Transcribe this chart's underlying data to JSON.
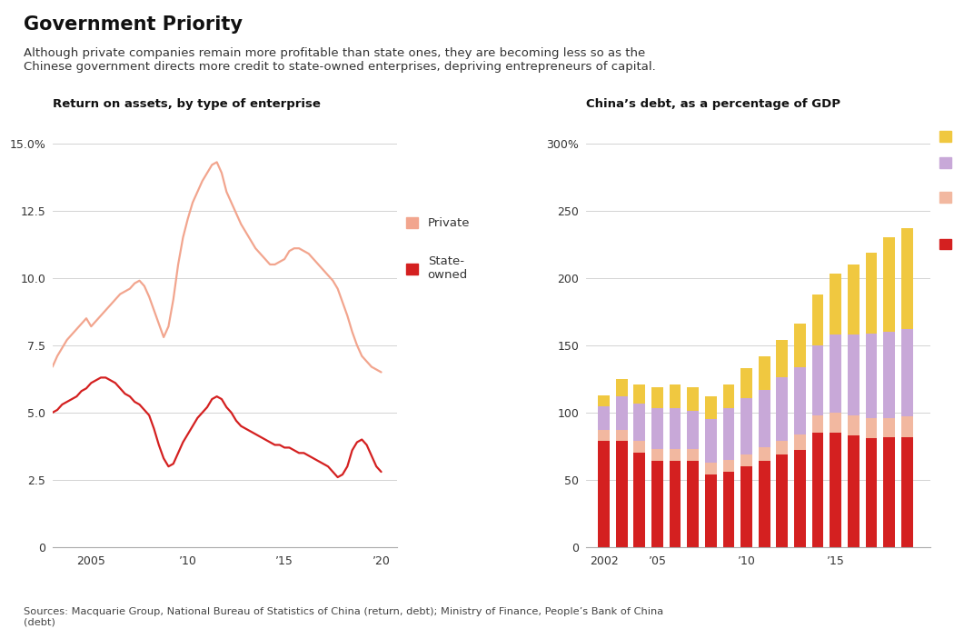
{
  "title": "Government Priority",
  "subtitle": "Although private companies remain more profitable than state ones, they are becoming less so as the\nChinese government directs more credit to state-owned enterprises, depriving entrepreneurs of capital.",
  "sources": "Sources: Macquarie Group, National Bureau of Statistics of China (return, debt); Ministry of Finance, People’s Bank of China\n(debt)",
  "left_title": "Return on assets, by type of enterprise",
  "left_years": [
    2003.0,
    2003.25,
    2003.5,
    2003.75,
    2004.0,
    2004.25,
    2004.5,
    2004.75,
    2005.0,
    2005.25,
    2005.5,
    2005.75,
    2006.0,
    2006.25,
    2006.5,
    2006.75,
    2007.0,
    2007.25,
    2007.5,
    2007.75,
    2008.0,
    2008.25,
    2008.5,
    2008.75,
    2009.0,
    2009.25,
    2009.5,
    2009.75,
    2010.0,
    2010.25,
    2010.5,
    2010.75,
    2011.0,
    2011.25,
    2011.5,
    2011.75,
    2012.0,
    2012.25,
    2012.5,
    2012.75,
    2013.0,
    2013.25,
    2013.5,
    2013.75,
    2014.0,
    2014.25,
    2014.5,
    2014.75,
    2015.0,
    2015.25,
    2015.5,
    2015.75,
    2016.0,
    2016.25,
    2016.5,
    2016.75,
    2017.0,
    2017.25,
    2017.5,
    2017.75,
    2018.0,
    2018.25,
    2018.5,
    2018.75,
    2019.0,
    2019.25,
    2019.5,
    2019.75,
    2020.0
  ],
  "private": [
    6.7,
    7.1,
    7.4,
    7.7,
    7.9,
    8.1,
    8.3,
    8.5,
    8.2,
    8.4,
    8.6,
    8.8,
    9.0,
    9.2,
    9.4,
    9.5,
    9.6,
    9.8,
    9.9,
    9.7,
    9.3,
    8.8,
    8.3,
    7.8,
    8.2,
    9.2,
    10.5,
    11.5,
    12.2,
    12.8,
    13.2,
    13.6,
    13.9,
    14.2,
    14.3,
    13.9,
    13.2,
    12.8,
    12.4,
    12.0,
    11.7,
    11.4,
    11.1,
    10.9,
    10.7,
    10.5,
    10.5,
    10.6,
    10.7,
    11.0,
    11.1,
    11.1,
    11.0,
    10.9,
    10.7,
    10.5,
    10.3,
    10.1,
    9.9,
    9.6,
    9.1,
    8.6,
    8.0,
    7.5,
    7.1,
    6.9,
    6.7,
    6.6,
    6.5
  ],
  "state_owned": [
    5.0,
    5.1,
    5.3,
    5.4,
    5.5,
    5.6,
    5.8,
    5.9,
    6.1,
    6.2,
    6.3,
    6.3,
    6.2,
    6.1,
    5.9,
    5.7,
    5.6,
    5.4,
    5.3,
    5.1,
    4.9,
    4.4,
    3.8,
    3.3,
    3.0,
    3.1,
    3.5,
    3.9,
    4.2,
    4.5,
    4.8,
    5.0,
    5.2,
    5.5,
    5.6,
    5.5,
    5.2,
    5.0,
    4.7,
    4.5,
    4.4,
    4.3,
    4.2,
    4.1,
    4.0,
    3.9,
    3.8,
    3.8,
    3.7,
    3.7,
    3.6,
    3.5,
    3.5,
    3.4,
    3.3,
    3.2,
    3.1,
    3.0,
    2.8,
    2.6,
    2.7,
    3.0,
    3.6,
    3.9,
    4.0,
    3.8,
    3.4,
    3.0,
    2.8
  ],
  "private_color": "#f2a58e",
  "state_owned_color": "#d42020",
  "left_ylim": [
    0,
    16
  ],
  "left_yticks": [
    0,
    2.5,
    5.0,
    7.5,
    10.0,
    12.5,
    15.0
  ],
  "left_ytick_labels": [
    "0",
    "2.5",
    "5.0",
    "7.5",
    "10.0",
    "12.5",
    "15.0%"
  ],
  "left_xticks": [
    2005,
    2010,
    2015,
    2020
  ],
  "left_xtick_labels": [
    "2005",
    "’10",
    "’15",
    "’20"
  ],
  "right_title": "China’s debt, as a percentage of GDP",
  "bar_years": [
    2002,
    2003,
    2004,
    2005,
    2006,
    2007,
    2008,
    2009,
    2010,
    2011,
    2012,
    2013,
    2014,
    2015,
    2016,
    2017,
    2018,
    2019
  ],
  "soe": [
    79,
    79,
    70,
    64,
    64,
    64,
    54,
    56,
    60,
    64,
    69,
    72,
    85,
    85,
    83,
    81,
    82,
    82
  ],
  "private_corp": [
    8,
    8,
    9,
    9,
    9,
    9,
    9,
    9,
    9,
    10,
    10,
    12,
    13,
    15,
    15,
    15,
    14,
    15
  ],
  "government": [
    18,
    25,
    28,
    30,
    30,
    28,
    32,
    38,
    42,
    43,
    47,
    50,
    52,
    58,
    60,
    63,
    64,
    65
  ],
  "household": [
    8,
    13,
    14,
    16,
    18,
    18,
    17,
    18,
    22,
    25,
    28,
    32,
    38,
    45,
    52,
    60,
    70,
    75
  ],
  "soe_color": "#d42020",
  "private_corp_color": "#f2b8a0",
  "government_color": "#c8a8d8",
  "household_color": "#f0c840",
  "right_ylim": [
    0,
    320
  ],
  "right_yticks": [
    0,
    50,
    100,
    150,
    200,
    250,
    300
  ],
  "right_ytick_labels": [
    "0",
    "50",
    "100",
    "150",
    "200",
    "250",
    "300%"
  ],
  "background_color": "#ffffff"
}
